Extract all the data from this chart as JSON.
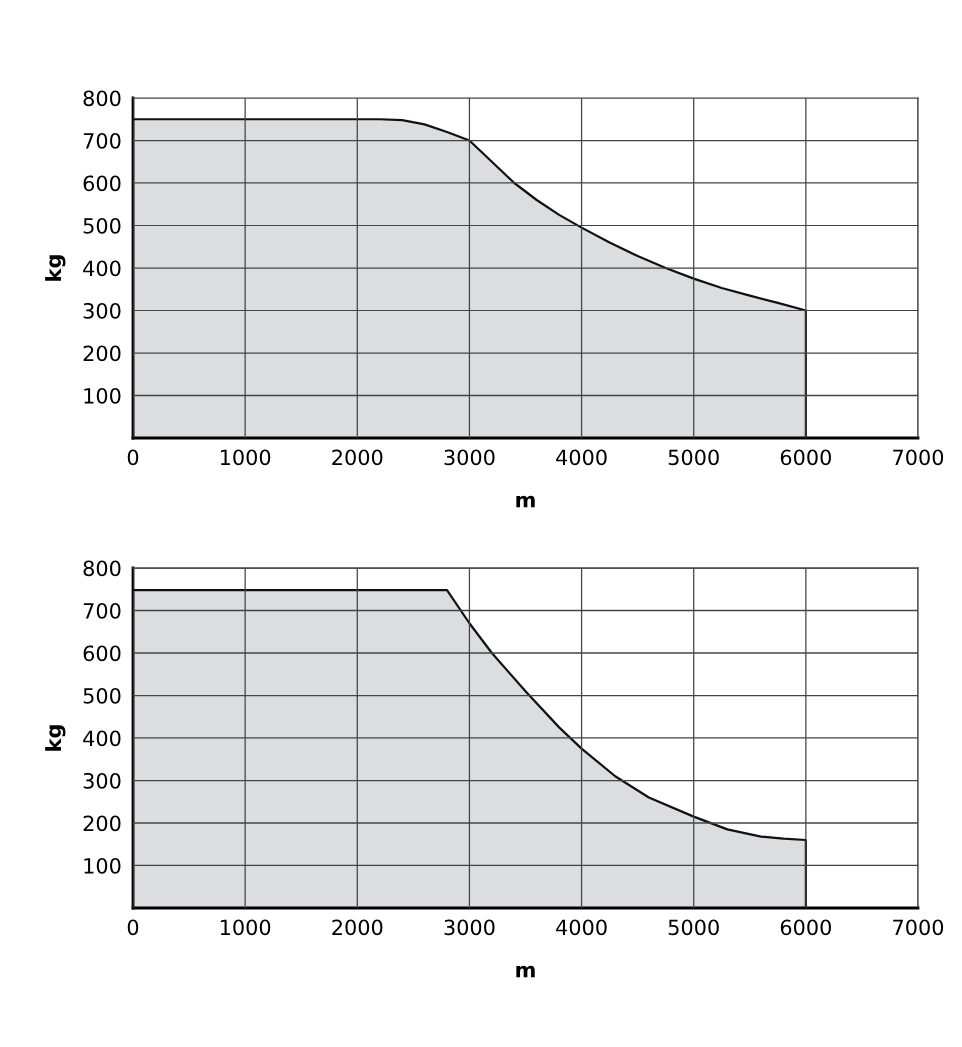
{
  "chart_data": [
    {
      "type": "area",
      "xlabel": "m",
      "ylabel": "kg",
      "xlim": [
        0,
        7000
      ],
      "xticks": [
        0,
        1000,
        2000,
        3000,
        4000,
        5000,
        6000,
        7000
      ],
      "ylim": [
        0,
        800
      ],
      "yticks": [
        100,
        200,
        300,
        400,
        500,
        600,
        700,
        800
      ],
      "grid": true,
      "series": [
        {
          "color": "#dcdde0",
          "x": [
            0,
            500,
            1000,
            1500,
            2000,
            2200,
            2400,
            2600,
            2800,
            3000,
            3200,
            3400,
            3600,
            3800,
            4000,
            4250,
            4500,
            4750,
            5000,
            5250,
            5500,
            5750,
            6000
          ],
          "values": [
            750,
            750,
            750,
            750,
            750,
            750,
            748,
            738,
            720,
            700,
            650,
            600,
            560,
            525,
            495,
            460,
            428,
            400,
            375,
            353,
            335,
            318,
            300
          ]
        }
      ]
    },
    {
      "type": "area",
      "xlabel": "m",
      "ylabel": "kg",
      "xlim": [
        0,
        7000
      ],
      "xticks": [
        0,
        1000,
        2000,
        3000,
        4000,
        5000,
        6000,
        7000
      ],
      "ylim": [
        0,
        800
      ],
      "yticks": [
        100,
        200,
        300,
        400,
        500,
        600,
        700,
        800
      ],
      "grid": true,
      "series": [
        {
          "color": "#dcdde0",
          "x": [
            0,
            2800,
            3000,
            3200,
            3500,
            3800,
            4000,
            4300,
            4600,
            5000,
            5300,
            5600,
            5800,
            6000
          ],
          "values": [
            748,
            748,
            670,
            600,
            510,
            425,
            375,
            310,
            260,
            215,
            185,
            168,
            163,
            160
          ]
        }
      ]
    }
  ]
}
